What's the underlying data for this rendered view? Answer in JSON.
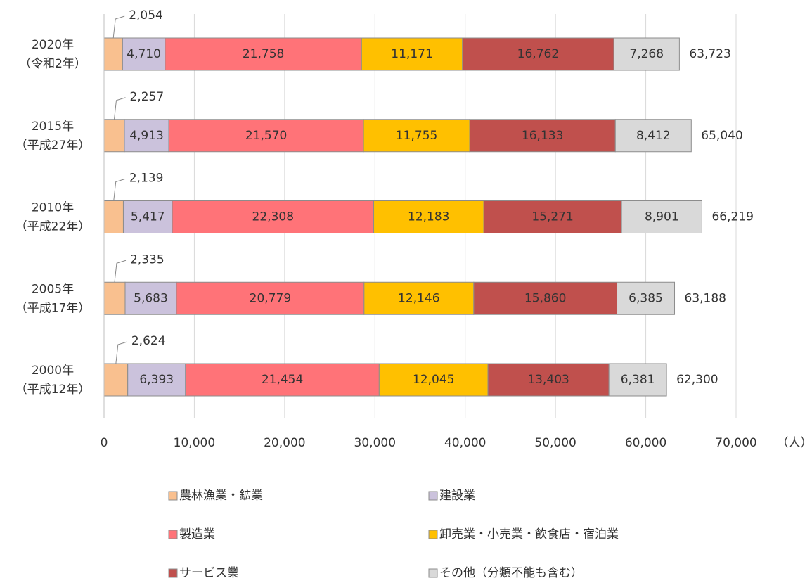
{
  "chart_data": {
    "type": "stacked_barh",
    "categories": [
      [
        "2020年",
        "（令和2年）"
      ],
      [
        "2015年",
        "（平成27年）"
      ],
      [
        "2010年",
        "（平成22年）"
      ],
      [
        "2005年",
        "（平成17年）"
      ],
      [
        "2000年",
        "（平成12年）"
      ]
    ],
    "series": [
      {
        "name": "農林漁業・鉱業",
        "color": "#f9c08f",
        "values": [
          2054,
          2257,
          2139,
          2335,
          2624
        ],
        "value_labels": [
          "2,054",
          "2,257",
          "2,139",
          "2,335",
          "2,624"
        ]
      },
      {
        "name": "建設業",
        "color": "#cbc2dc",
        "values": [
          4710,
          4913,
          5417,
          5683,
          6393
        ],
        "value_labels": [
          "4,710",
          "4,913",
          "5,417",
          "5,683",
          "6,393"
        ]
      },
      {
        "name": "製造業",
        "color": "#ff7378",
        "values": [
          21758,
          21570,
          22308,
          20779,
          21454
        ],
        "value_labels": [
          "21,758",
          "21,570",
          "22,308",
          "20,779",
          "21,454"
        ]
      },
      {
        "name": "卸売業・小売業・飲食店・宿泊業",
        "color": "#ffc000",
        "values": [
          11171,
          11755,
          12183,
          12146,
          12045
        ],
        "value_labels": [
          "11,171",
          "11,755",
          "12,183",
          "12,146",
          "12,045"
        ]
      },
      {
        "name": "サービス業",
        "color": "#c0504d",
        "values": [
          16762,
          16133,
          15271,
          15860,
          13403
        ],
        "value_labels": [
          "16,762",
          "16,133",
          "15,271",
          "15,860",
          "13,403"
        ]
      },
      {
        "name": "その他（分類不能も含む）",
        "color": "#d9d9d9",
        "values": [
          7268,
          8412,
          8901,
          6385,
          6381
        ],
        "value_labels": [
          "7,268",
          "8,412",
          "8,901",
          "6,385",
          "6,381"
        ]
      }
    ],
    "totals": [
      63723,
      65040,
      66219,
      63188,
      62300
    ],
    "total_labels": [
      "63,723",
      "65,040",
      "66,219",
      "63,188",
      "62,300"
    ],
    "x_label": "（人）",
    "xlim": [
      0,
      70000
    ],
    "xticks": [
      0,
      {
        "value": 10000,
        "label": "10,000"
      },
      {
        "value": 20000,
        "label": "20,000"
      },
      {
        "value": 30000,
        "label": "30,000"
      },
      {
        "value": 40000,
        "label": "40,000"
      },
      {
        "value": 50000,
        "label": "50,000"
      },
      {
        "value": 60000,
        "label": "60,000"
      },
      {
        "value": 70000,
        "label": "70,000"
      }
    ],
    "grid": true
  }
}
